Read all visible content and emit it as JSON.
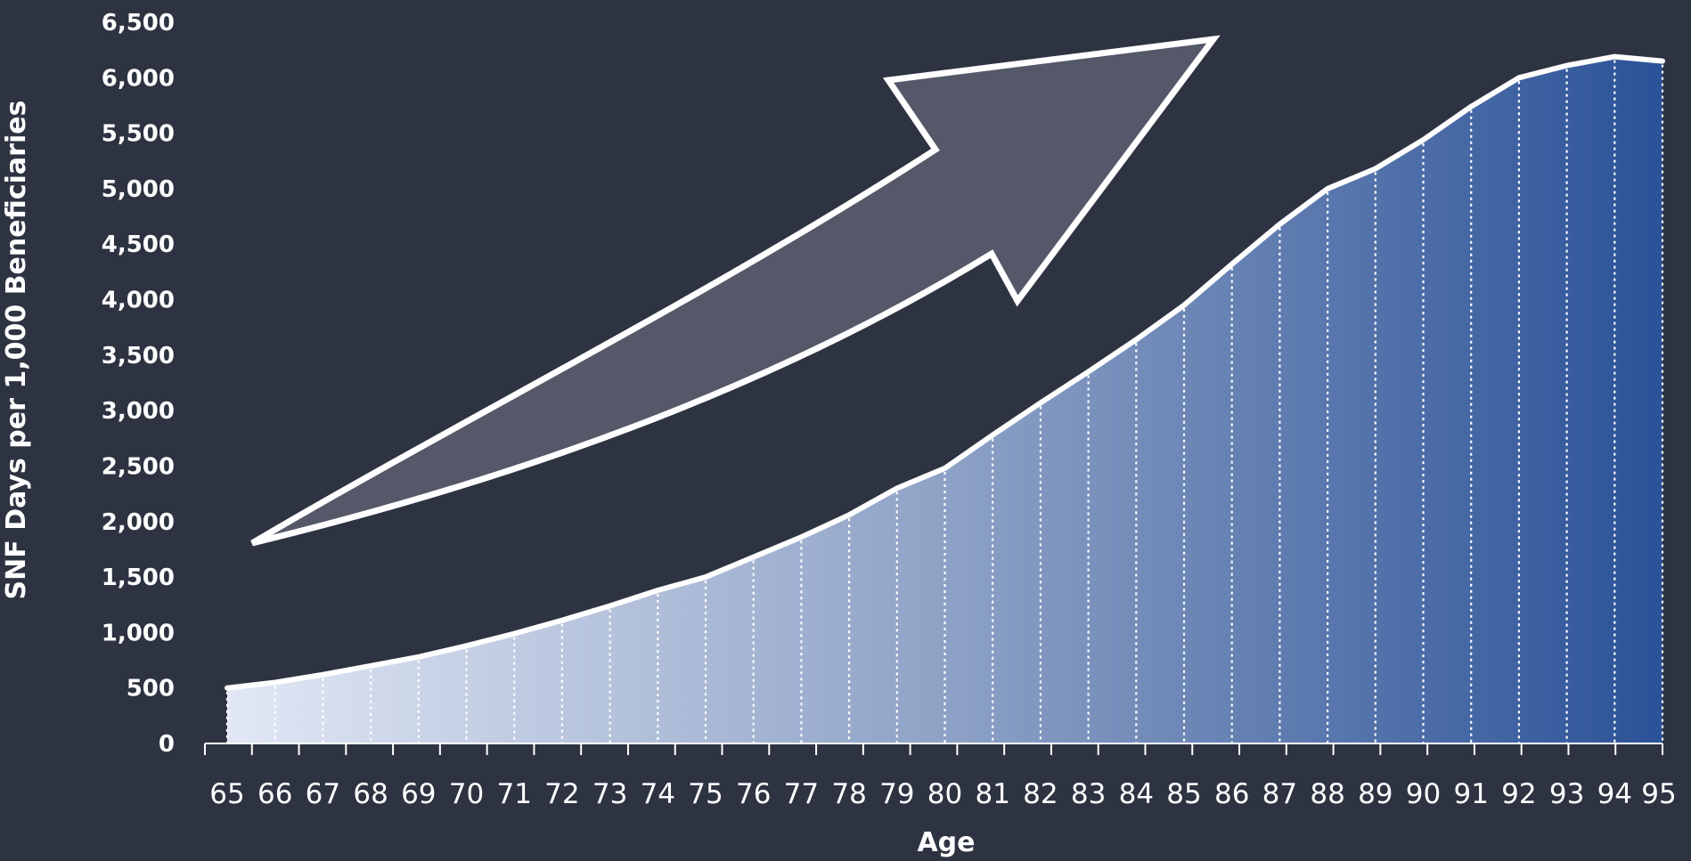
{
  "chart_data": {
    "type": "area",
    "title": "",
    "xlabel": "Age",
    "ylabel": "SNF Days per 1,000 Beneficiaries",
    "x": [
      65,
      66,
      67,
      68,
      69,
      70,
      71,
      72,
      73,
      74,
      75,
      76,
      77,
      78,
      79,
      80,
      81,
      82,
      83,
      84,
      85,
      86,
      87,
      88,
      89,
      90,
      91,
      92,
      93,
      94,
      95
    ],
    "x_tick_labels": [
      "65",
      "66",
      "67",
      "68",
      "69",
      "70",
      "71",
      "72",
      "73",
      "74",
      "75",
      "76",
      "77",
      "78",
      "79",
      "80",
      "81",
      "82",
      "83",
      "84",
      "85",
      "86",
      "87",
      "88",
      "89",
      "90",
      "91",
      "92",
      "93",
      "94",
      "95"
    ],
    "series": [
      {
        "values": [
          500,
          550,
          620,
          700,
          780,
          880,
          990,
          1110,
          1240,
          1380,
          1500,
          1680,
          1860,
          2060,
          2300,
          2480,
          2780,
          3070,
          3350,
          3640,
          3950,
          4320,
          4680,
          5000,
          5180,
          5440,
          5740,
          6000,
          6110,
          6190,
          6150
        ]
      }
    ],
    "ylim": [
      0,
      6500
    ],
    "y_tick_values": [
      0,
      500,
      1000,
      1500,
      2000,
      2500,
      3000,
      3500,
      4000,
      4500,
      5000,
      5500,
      6000,
      6500
    ],
    "y_tick_labels": [
      "0",
      "500",
      "1,000",
      "1,500",
      "2,000",
      "2,500",
      "3,000",
      "3,500",
      "4,000",
      "4,500",
      "5,000",
      "5,500",
      "6,000",
      "6,500"
    ],
    "grid": false,
    "vertical_dotted_lines": true,
    "annotations": [
      {
        "type": "arrow",
        "meaning": "increasing trend"
      }
    ],
    "colors": {
      "background": "#2e3342",
      "area_start": "#e2e8f5",
      "area_mid": "#8ea2c6",
      "area_end": "#2b5298",
      "line": "#ffffff",
      "arrow_fill": "#545868",
      "arrow_stroke": "#ffffff",
      "text": "#ffffff"
    }
  }
}
